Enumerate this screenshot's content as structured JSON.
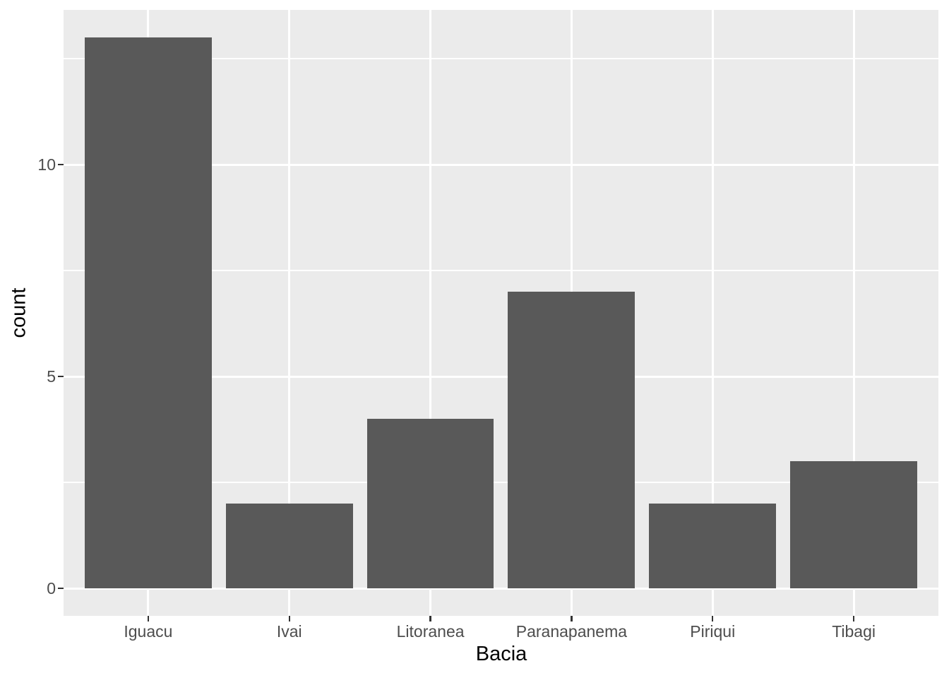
{
  "chart_data": {
    "type": "bar",
    "title": "",
    "xlabel": "Bacia",
    "ylabel": "count",
    "categories": [
      "Iguacu",
      "Ivai",
      "Litoranea",
      "Paranapanema",
      "Piriqui",
      "Tibagi"
    ],
    "values": [
      13,
      2,
      4,
      7,
      2,
      3
    ],
    "y_major_ticks": [
      0,
      5,
      10
    ],
    "y_minor_gridlines": [
      2.5,
      7.5,
      12.5
    ],
    "ylim": [
      -0.65,
      13.65
    ],
    "bar_rel_width": 0.9,
    "grid": "on",
    "legend": "none",
    "style": "ggplot2-theme-grey",
    "colors": {
      "bar": "#595959",
      "panel_background": "#EBEBEB",
      "gridline": "#FFFFFF",
      "tick_label": "#4D4D4D",
      "axis_title": "#000000",
      "tick_mark": "#333333",
      "figure_background": "#FFFFFF"
    }
  }
}
